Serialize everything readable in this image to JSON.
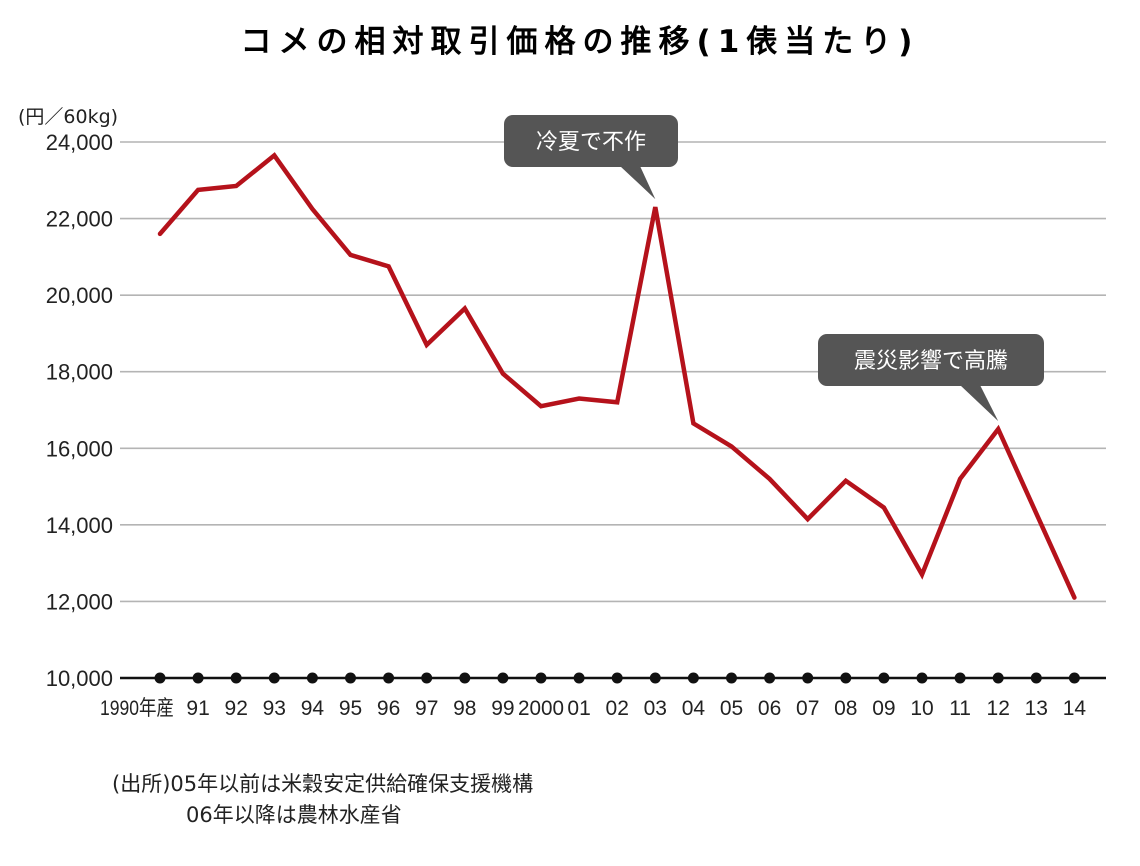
{
  "chart_data": {
    "type": "line",
    "title": "コメの相対取引価格の推移(1俵当たり)",
    "unit_label": "(円／60kg)",
    "x_tick_labels": [
      "1990年産",
      "91",
      "92",
      "93",
      "94",
      "95",
      "96",
      "97",
      "98",
      "99",
      "2000",
      "01",
      "02",
      "03",
      "04",
      "05",
      "06",
      "07",
      "08",
      "09",
      "10",
      "11",
      "12",
      "13",
      "14"
    ],
    "years": [
      1990,
      1991,
      1992,
      1993,
      1994,
      1995,
      1996,
      1997,
      1998,
      1999,
      2000,
      2001,
      2002,
      2003,
      2004,
      2005,
      2006,
      2007,
      2008,
      2009,
      2010,
      2011,
      2012,
      2013,
      2014
    ],
    "values": [
      21600,
      22750,
      22850,
      23650,
      22250,
      21050,
      20750,
      18700,
      19650,
      17950,
      17100,
      17300,
      17200,
      22300,
      16650,
      16050,
      15200,
      14150,
      15150,
      14450,
      12700,
      15200,
      16500,
      14300,
      12100
    ],
    "ylim": [
      10000,
      24000
    ],
    "y_ticks": [
      10000,
      12000,
      14000,
      16000,
      18000,
      20000,
      22000,
      24000
    ],
    "y_tick_labels": [
      "10,000",
      "12,000",
      "14,000",
      "16,000",
      "18,000",
      "20,000",
      "22,000",
      "24,000"
    ],
    "grid": true,
    "line_color": "#b5121b",
    "annotations": [
      {
        "text": "冷夏で不作",
        "year": 2003
      },
      {
        "text": "震災影響で高騰",
        "year": 2012
      }
    ]
  },
  "source": {
    "line1": "(出所)05年以前は米穀安定供給確保支援機構",
    "line2": "06年以降は農林水産省"
  }
}
